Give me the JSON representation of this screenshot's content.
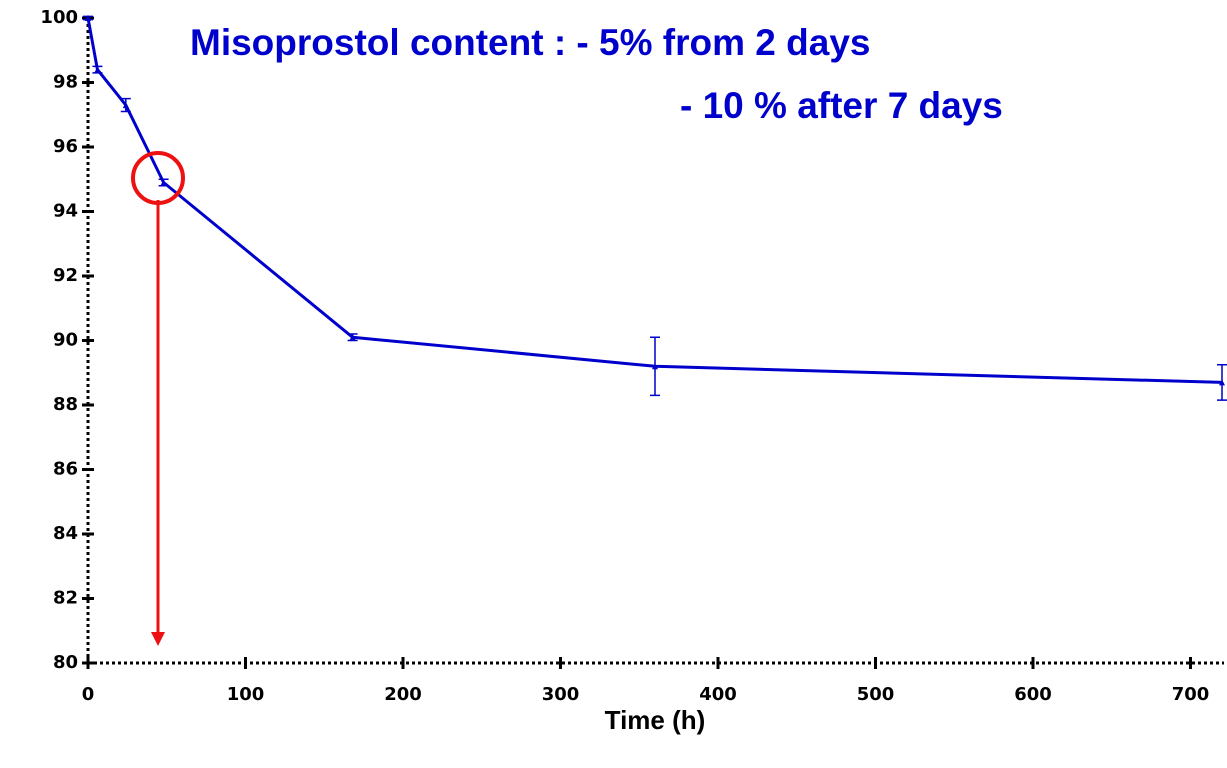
{
  "chart_data": {
    "type": "line",
    "annotations": [
      "Misoprostol content : - 5% from 2 days",
      "- 10 % after 7 days"
    ],
    "xlabel": "Time (h)",
    "x": [
      0,
      6,
      24,
      48,
      168,
      360,
      720
    ],
    "series": [
      {
        "color": "#0000cc",
        "values": [
          100,
          98.4,
          97.3,
          94.9,
          90.1,
          89.2,
          88.7
        ],
        "errors": [
          0.05,
          0.1,
          0.2,
          0.1,
          0.1,
          0.9,
          0.55
        ]
      }
    ],
    "xlim": [
      0,
      720
    ],
    "xticks": [
      0,
      100,
      200,
      300,
      400,
      500,
      600,
      700
    ],
    "ylim": [
      80,
      100
    ],
    "yticks": [
      80,
      82,
      84,
      86,
      88,
      90,
      92,
      94,
      96,
      98,
      100
    ]
  }
}
